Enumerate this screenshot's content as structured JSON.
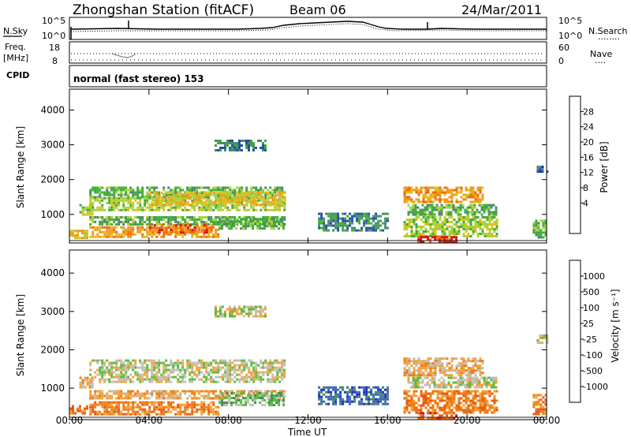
{
  "header": {
    "station": "Zhongshan Station (fitACF)",
    "beam": "Beam 06",
    "date": "24/Mar/2011"
  },
  "noise_panel": {
    "left_label": "N.Sky",
    "left_ticks": [
      "10^5",
      "10^0"
    ],
    "right_ticks": [
      "10^5",
      "10^0"
    ],
    "right_label": "N.Search",
    "right_dots": "........"
  },
  "freq_panel": {
    "left_label_1": "Freq.",
    "left_label_2": "[MHz]",
    "left_ticks": [
      "18",
      "8"
    ],
    "right_ticks": [
      "60",
      "0"
    ],
    "right_label": "Nave",
    "right_dots": "...."
  },
  "cpid_panel": {
    "label": "CPID",
    "text": "normal (fast stereo) 153"
  },
  "axes": {
    "y_label": "Slant Range [km]",
    "y_ticks": [
      1000,
      2000,
      3000,
      4000
    ],
    "y_range": [
      180,
      4600
    ],
    "x_label": "Time UT",
    "x_ticks": [
      "00:00",
      "04:00",
      "08:00",
      "12:00",
      "16:00",
      "20:00",
      "00:00"
    ],
    "x_tick_hours": [
      0,
      4,
      8,
      12,
      16,
      20,
      24
    ],
    "x_range_hours": [
      0,
      24
    ]
  },
  "power_scale": {
    "title": "Power [dB]",
    "labels": [
      "28",
      "24",
      "20",
      "16",
      "12",
      "8",
      "4"
    ],
    "colors": [
      "#0022dd",
      "#2450aa",
      "#4a8c66",
      "#3fae3a",
      "#a8d23a",
      "#e0c020",
      "#f29a1a",
      "#ef6a10",
      "#dd1010"
    ]
  },
  "velocity_scale": {
    "title": "Velocity [m s⁻¹]",
    "labels": [
      "1000",
      "500",
      "100",
      "25",
      "-25",
      "-100",
      "-500",
      "-1000"
    ],
    "colors": [
      "#1e30c8",
      "#3f64b8",
      "#3f8c60",
      "#5cbc3c",
      "#c0c0b8",
      "#f3a23c",
      "#ee7e14",
      "#e85a12",
      "#dd1010"
    ]
  },
  "chart_data": [
    {
      "type": "heatmap",
      "name": "Power",
      "xlabel": "Time UT",
      "ylabel": "Slant Range [km]",
      "xlim_hours": [
        0,
        24
      ],
      "ylim_km": [
        180,
        4600
      ],
      "colorbar_label": "Power [dB]",
      "regions": [
        {
          "t0": 0.0,
          "t1": 0.9,
          "r0": 330,
          "r1": 560,
          "level": 5
        },
        {
          "t0": 0.5,
          "t1": 1.1,
          "r0": 1000,
          "r1": 1300,
          "level": 4
        },
        {
          "t0": 1.0,
          "t1": 10.8,
          "r0": 1500,
          "r1": 1800,
          "level": 3
        },
        {
          "t0": 1.0,
          "t1": 10.8,
          "r0": 1120,
          "r1": 1500,
          "level": 4
        },
        {
          "t0": 4.0,
          "t1": 10.8,
          "r0": 1250,
          "r1": 1650,
          "level": 5
        },
        {
          "t0": 1.0,
          "t1": 10.8,
          "r0": 740,
          "r1": 950,
          "level": 3
        },
        {
          "t0": 1.0,
          "t1": 7.5,
          "r0": 330,
          "r1": 660,
          "level": 6
        },
        {
          "t0": 4.0,
          "t1": 7.2,
          "r0": 480,
          "r1": 720,
          "level": 7
        },
        {
          "t0": 7.5,
          "t1": 10.8,
          "r0": 560,
          "r1": 900,
          "level": 3
        },
        {
          "t0": 7.3,
          "t1": 9.8,
          "r0": 2850,
          "r1": 3150,
          "level": 2
        },
        {
          "t0": 12.5,
          "t1": 16.0,
          "r0": 560,
          "r1": 1050,
          "level": 2
        },
        {
          "t0": 16.8,
          "t1": 21.5,
          "r0": 360,
          "r1": 950,
          "level": 4
        },
        {
          "t0": 17.0,
          "t1": 21.5,
          "r0": 1000,
          "r1": 1300,
          "level": 3
        },
        {
          "t0": 16.8,
          "t1": 20.8,
          "r0": 1350,
          "r1": 1800,
          "level": 6
        },
        {
          "t0": 17.5,
          "t1": 19.5,
          "r0": 220,
          "r1": 380,
          "level": 8
        },
        {
          "t0": 23.5,
          "t1": 24.0,
          "r0": 2200,
          "r1": 2400,
          "level": 1
        },
        {
          "t0": 23.3,
          "t1": 24.0,
          "r0": 350,
          "r1": 850,
          "level": 3
        }
      ]
    },
    {
      "type": "heatmap",
      "name": "Velocity",
      "xlabel": "Time UT",
      "ylabel": "Slant Range [km]",
      "xlim_hours": [
        0,
        24
      ],
      "ylim_km": [
        180,
        4600
      ],
      "colorbar_label": "Velocity [m s⁻¹]",
      "regions": [
        {
          "t0": 0.0,
          "t1": 0.9,
          "r0": 330,
          "r1": 560,
          "level": 6
        },
        {
          "t0": 0.5,
          "t1": 1.1,
          "r0": 1000,
          "r1": 1300,
          "level": 5
        },
        {
          "t0": 1.0,
          "t1": 10.8,
          "r0": 1150,
          "r1": 1750,
          "level": 4
        },
        {
          "t0": 1.0,
          "t1": 10.8,
          "r0": 740,
          "r1": 950,
          "level": 5
        },
        {
          "t0": 1.0,
          "t1": 7.5,
          "r0": 330,
          "r1": 660,
          "level": 6
        },
        {
          "t0": 7.5,
          "t1": 10.8,
          "r0": 560,
          "r1": 900,
          "level": 3
        },
        {
          "t0": 7.3,
          "t1": 9.8,
          "r0": 2850,
          "r1": 3150,
          "level": 4
        },
        {
          "t0": 12.5,
          "t1": 16.0,
          "r0": 560,
          "r1": 1050,
          "level": 1
        },
        {
          "t0": 16.8,
          "t1": 21.5,
          "r0": 360,
          "r1": 950,
          "level": 6
        },
        {
          "t0": 17.0,
          "t1": 21.5,
          "r0": 1000,
          "r1": 1300,
          "level": 4
        },
        {
          "t0": 16.8,
          "t1": 20.8,
          "r0": 1350,
          "r1": 1800,
          "level": 5
        },
        {
          "t0": 17.5,
          "t1": 19.5,
          "r0": 220,
          "r1": 380,
          "level": 7
        },
        {
          "t0": 23.5,
          "t1": 24.0,
          "r0": 2200,
          "r1": 2400,
          "level": 4
        },
        {
          "t0": 23.3,
          "t1": 24.0,
          "r0": 350,
          "r1": 850,
          "level": 6
        }
      ]
    }
  ]
}
